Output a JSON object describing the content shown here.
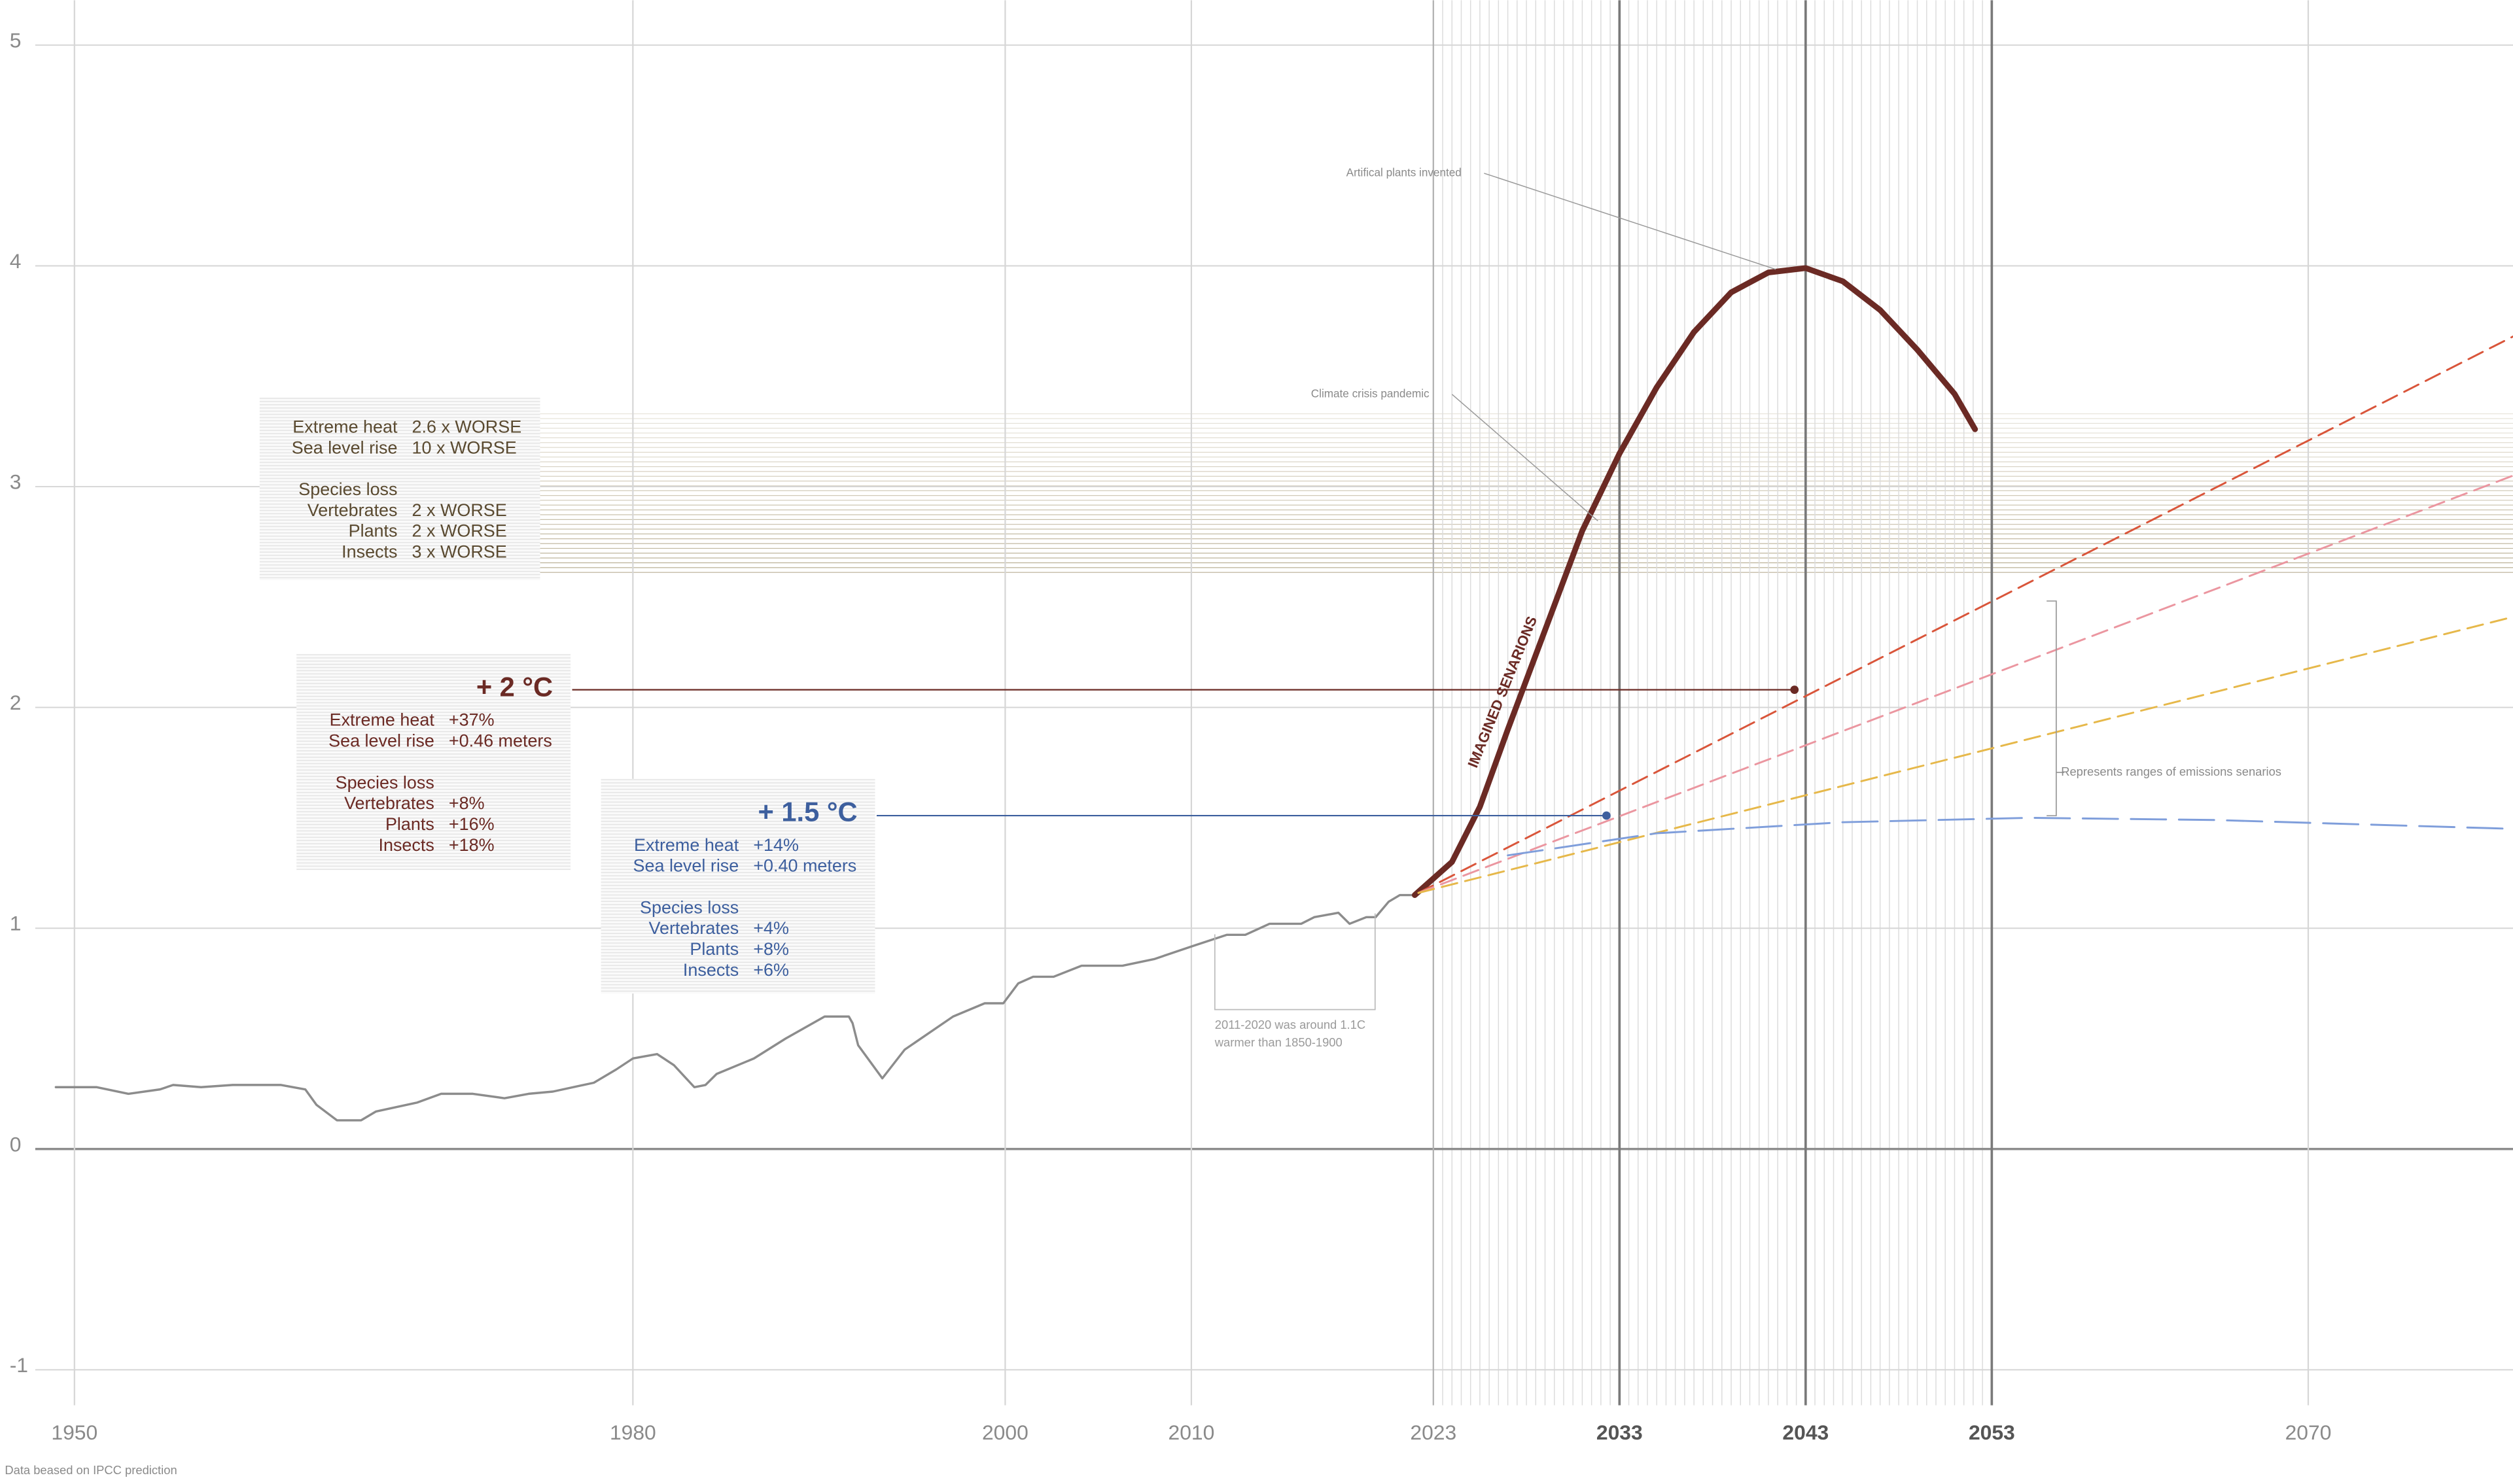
{
  "chart_data": {
    "type": "line",
    "xlim": [
      1946,
      2081
    ],
    "ylim": [
      -1.2,
      5.2
    ],
    "xticks": [
      1950,
      1980,
      2000,
      2010,
      2023,
      2033,
      2043,
      2053,
      2070
    ],
    "yticks": [
      -1,
      0,
      1,
      2,
      3,
      4,
      5
    ],
    "highlight_years": [
      2033,
      2043,
      2053
    ],
    "fine_grid": [
      2023,
      2053
    ],
    "hatch_band": [
      2.61,
      3.33
    ],
    "grid": true,
    "series": [
      {
        "color": "#8c8c8c",
        "style": "solid",
        "width": 1.4,
        "x": [
          1949.0,
          1951.2,
          1952.9,
          1954.6,
          1955.3,
          1956.8,
          1958.5,
          1961.1,
          1962.4,
          1963.0,
          1964.1,
          1965.4,
          1966.2,
          1968.4,
          1969.7,
          1971.4,
          1973.1,
          1974.4,
          1975.7,
          1977.9,
          1979.1,
          1980.0,
          1981.3,
          1982.2,
          1983.3,
          1983.9,
          1984.5,
          1986.5,
          1988.2,
          1990.3,
          1991.6,
          1991.8,
          1992.1,
          1993.4,
          1994.6,
          1997.2,
          1998.9,
          1999.9,
          2000.7,
          2001.5,
          2002.6,
          2004.1,
          2006.3,
          2008.0,
          2010.1,
          2011.9,
          2012.9,
          2014.2,
          2015.9,
          2016.6,
          2017.9,
          2018.5,
          2019.4,
          2019.9,
          2020.6,
          2021.2,
          2022.0
        ],
        "values": [
          0.28,
          0.28,
          0.25,
          0.27,
          0.29,
          0.28,
          0.29,
          0.29,
          0.27,
          0.2,
          0.13,
          0.13,
          0.17,
          0.21,
          0.25,
          0.25,
          0.23,
          0.25,
          0.26,
          0.3,
          0.36,
          0.41,
          0.43,
          0.38,
          0.28,
          0.29,
          0.34,
          0.41,
          0.5,
          0.6,
          0.6,
          0.57,
          0.47,
          0.32,
          0.45,
          0.6,
          0.66,
          0.66,
          0.75,
          0.78,
          0.78,
          0.83,
          0.83,
          0.86,
          0.92,
          0.97,
          0.97,
          1.02,
          1.02,
          1.05,
          1.07,
          1.02,
          1.05,
          1.05,
          1.12,
          1.15,
          1.15
        ]
      },
      {
        "color": "#6b2a24",
        "style": "solid",
        "width": 3.6,
        "x": [
          2022.0,
          2024,
          2025.5,
          2027,
          2029,
          2031,
          2033,
          2035,
          2037,
          2039,
          2041,
          2043,
          2045,
          2047,
          2049,
          2051,
          2052.1
        ],
        "values": [
          1.15,
          1.3,
          1.55,
          1.9,
          2.35,
          2.8,
          3.15,
          3.45,
          3.7,
          3.88,
          3.97,
          3.99,
          3.93,
          3.8,
          3.62,
          3.42,
          3.26
        ]
      },
      {
        "color": "#d9553a",
        "style": "dashed",
        "width": 1.2,
        "x": [
          2022.2,
          2081
        ],
        "values": [
          1.16,
          3.68
        ]
      },
      {
        "color": "#eb96a0",
        "style": "dashed",
        "width": 1.2,
        "x": [
          2022.2,
          2081
        ],
        "values": [
          1.16,
          3.05
        ]
      },
      {
        "color": "#e6b84a",
        "style": "dashed",
        "width": 1.2,
        "x": [
          2022.2,
          2081
        ],
        "values": [
          1.16,
          2.41
        ]
      },
      {
        "color": "#7f9edb",
        "style": "longdash",
        "width": 1.2,
        "x": [
          2027,
          2035,
          2045,
          2055,
          2065,
          2081
        ],
        "values": [
          1.33,
          1.43,
          1.48,
          1.5,
          1.49,
          1.45
        ]
      }
    ],
    "boxes": [
      {
        "color": "#5a4a30",
        "rows": [
          [
            "Extreme heat",
            "2.6 x WORSE"
          ],
          [
            "Sea level rise",
            "10 x WORSE"
          ]
        ],
        "species_heading": "Species loss",
        "species": [
          [
            "Vertebrates",
            "2 x WORSE"
          ],
          [
            "Plants",
            "2 x WORSE"
          ],
          [
            "Insects",
            "3 x WORSE"
          ]
        ]
      },
      {
        "color": "#6b2a24",
        "heading": "+ 2 °C",
        "target": {
          "x": 2042.4,
          "y": 2.08
        },
        "rows": [
          [
            "Extreme heat",
            "+37%"
          ],
          [
            "Sea level rise",
            "+0.46 meters"
          ]
        ],
        "species_heading": "Species loss",
        "species": [
          [
            "Vertebrates",
            "+8%"
          ],
          [
            "Plants",
            "+16%"
          ],
          [
            "Insects",
            "+18%"
          ]
        ]
      },
      {
        "color": "#3d5f9e",
        "heading": "+ 1.5 °C",
        "target": {
          "x": 2032.3,
          "y": 1.51
        },
        "rows": [
          [
            "Extreme heat",
            "+14%"
          ],
          [
            "Sea level rise",
            "+0.40 meters"
          ]
        ],
        "species_heading": "Species loss",
        "species": [
          [
            "Vertebrates",
            "+4%"
          ],
          [
            "Plants",
            "+8%"
          ],
          [
            "Insects",
            "+6%"
          ]
        ]
      }
    ],
    "annotations": {
      "plants": "Artifical plants invented",
      "pandemic": "Climate crisis pandemic",
      "imagined": "IMAGINED SENARIONS",
      "baseline_note": [
        "2011-2020 was around 1.1C",
        "warmer than 1850-1900"
      ],
      "ranges": "Represents ranges of emissions senarios",
      "source": "Data beased on IPCC prediction"
    }
  }
}
